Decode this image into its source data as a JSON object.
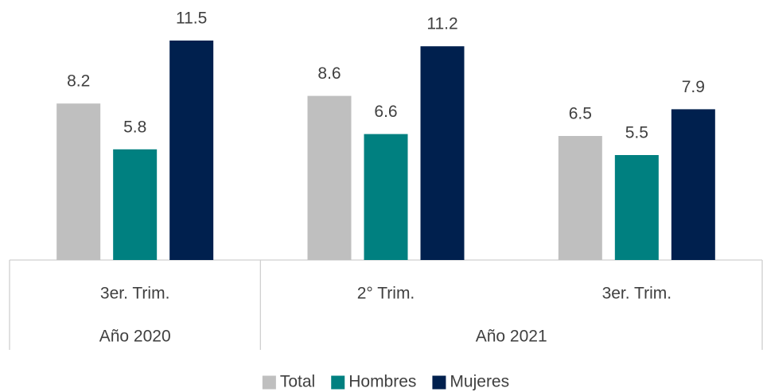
{
  "chart_data": {
    "type": "bar",
    "groups": [
      {
        "name": "Año 2020",
        "categories": [
          "3er. Trim."
        ]
      },
      {
        "name": "Año 2021",
        "categories": [
          "2° Trim.",
          "3er. Trim."
        ]
      }
    ],
    "series": [
      {
        "name": "Total",
        "color": "#bfbfbf",
        "values": [
          8.2,
          8.6,
          6.5
        ]
      },
      {
        "name": "Hombres",
        "color": "#008080",
        "values": [
          5.8,
          6.6,
          5.5
        ]
      },
      {
        "name": "Mujeres",
        "color": "#00204e",
        "values": [
          11.5,
          11.2,
          7.9
        ]
      }
    ],
    "legend": "bottom"
  }
}
